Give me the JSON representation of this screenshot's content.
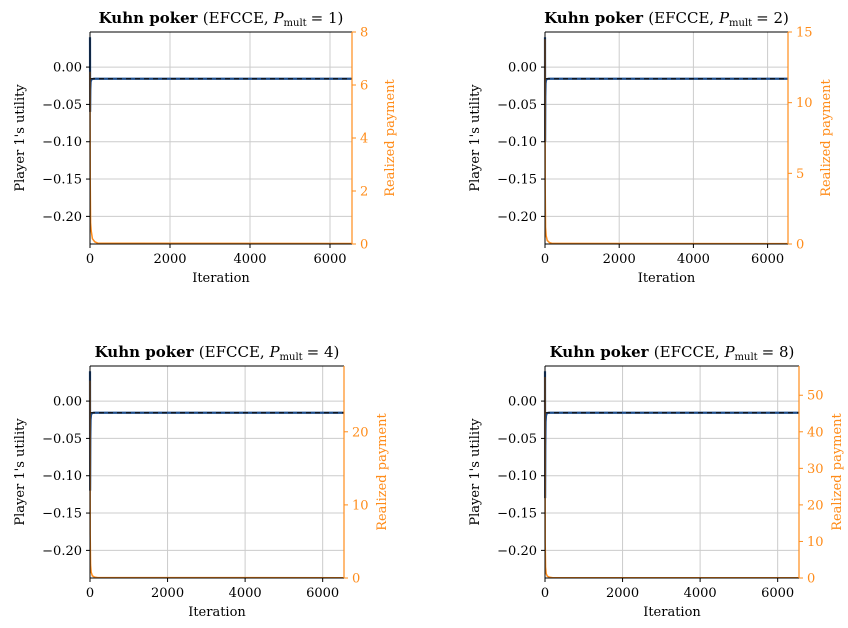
{
  "figure": {
    "title_prefix": "Kuhn poker",
    "title_bold_prefix": true,
    "colors": {
      "utility_line": "#1f4e8c",
      "utility_dashed": "#111111",
      "payment": "#ff8c1a",
      "grid": "#cccccc"
    }
  },
  "chart_data": [
    {
      "type": "line",
      "title": "Kuhn poker (EFCCE, P_mult = 1)",
      "title_suffix": "(EFCCE, ",
      "pmult_label": "P",
      "pmult_sub": "mult",
      "pmult_value": "= 1)",
      "xlabel": "Iteration",
      "ylabel": "Player 1's utility",
      "y2label": "Realized payment",
      "xlim": [
        0,
        6550
      ],
      "ylim": [
        -0.237,
        0.047
      ],
      "y2lim": [
        0,
        8
      ],
      "xticks": [
        0,
        2000,
        4000,
        6000
      ],
      "xtick_labels": [
        "0",
        "2000",
        "4000",
        "6000"
      ],
      "yticks": [
        0.0,
        -0.05,
        -0.1,
        -0.15,
        -0.2
      ],
      "ytick_labels": [
        "0.00",
        "−0.05",
        "−0.10",
        "−0.15",
        "−0.20"
      ],
      "y2ticks": [
        0,
        2,
        4,
        6,
        8
      ],
      "y2tick_labels": [
        "0",
        "2",
        "4",
        "6",
        "8"
      ],
      "grid": true,
      "series": [
        {
          "axis": "left",
          "style": "solid",
          "x": [
            0,
            3,
            8,
            15,
            25,
            40,
            60,
            100,
            6550
          ],
          "y": [
            0.04,
            -0.06,
            -0.03,
            -0.02,
            -0.018,
            -0.0165,
            -0.016,
            -0.0156,
            -0.0156
          ]
        },
        {
          "axis": "left",
          "style": "dashed",
          "x": [
            0,
            6550
          ],
          "y": [
            -0.0156,
            -0.0156
          ]
        },
        {
          "axis": "right",
          "style": "solid",
          "x": [
            0,
            5,
            15,
            30,
            60,
            120,
            200,
            6550
          ],
          "y": [
            6.5,
            2.5,
            0.8,
            0.5,
            0.2,
            0.08,
            0.03,
            0.02
          ]
        }
      ]
    },
    {
      "type": "line",
      "title": "Kuhn poker (EFCCE, P_mult = 2)",
      "title_suffix": "(EFCCE, ",
      "pmult_label": "P",
      "pmult_sub": "mult",
      "pmult_value": "= 2)",
      "xlabel": "Iteration",
      "ylabel": "Player 1's utility",
      "y2label": "Realized payment",
      "xlim": [
        0,
        6550
      ],
      "ylim": [
        -0.237,
        0.047
      ],
      "y2lim": [
        0,
        15
      ],
      "xticks": [
        0,
        2000,
        4000,
        6000
      ],
      "xtick_labels": [
        "0",
        "2000",
        "4000",
        "6000"
      ],
      "yticks": [
        0.0,
        -0.05,
        -0.1,
        -0.15,
        -0.2
      ],
      "ytick_labels": [
        "0.00",
        "−0.05",
        "−0.10",
        "−0.15",
        "−0.20"
      ],
      "y2ticks": [
        0,
        5,
        10,
        15
      ],
      "y2tick_labels": [
        "0",
        "5",
        "10",
        "15"
      ],
      "grid": true,
      "series": [
        {
          "axis": "left",
          "style": "solid",
          "x": [
            0,
            3,
            8,
            15,
            25,
            40,
            60,
            100,
            6550
          ],
          "y": [
            0.04,
            -0.1,
            -0.04,
            -0.022,
            -0.018,
            -0.0165,
            -0.016,
            -0.0156,
            -0.0156
          ]
        },
        {
          "axis": "left",
          "style": "dashed",
          "x": [
            0,
            6550
          ],
          "y": [
            -0.0156,
            -0.0156
          ]
        },
        {
          "axis": "right",
          "style": "solid",
          "x": [
            0,
            5,
            15,
            30,
            60,
            120,
            200,
            6550
          ],
          "y": [
            14.5,
            4.0,
            1.2,
            0.6,
            0.25,
            0.1,
            0.04,
            0.03
          ]
        }
      ]
    },
    {
      "type": "line",
      "title": "Kuhn poker (EFCCE, P_mult = 4)",
      "title_suffix": "(EFCCE, ",
      "pmult_label": "P",
      "pmult_sub": "mult",
      "pmult_value": "= 4)",
      "xlabel": "Iteration",
      "ylabel": "Player 1's utility",
      "y2label": "Realized payment",
      "xlim": [
        0,
        6550
      ],
      "ylim": [
        -0.237,
        0.047
      ],
      "y2lim": [
        0,
        29
      ],
      "xticks": [
        0,
        2000,
        4000,
        6000
      ],
      "xtick_labels": [
        "0",
        "2000",
        "4000",
        "6000"
      ],
      "yticks": [
        0.0,
        -0.05,
        -0.1,
        -0.15,
        -0.2
      ],
      "ytick_labels": [
        "0.00",
        "−0.05",
        "−0.10",
        "−0.15",
        "−0.20"
      ],
      "y2ticks": [
        0,
        10,
        20
      ],
      "y2tick_labels": [
        "0",
        "10",
        "20"
      ],
      "grid": true,
      "series": [
        {
          "axis": "left",
          "style": "solid",
          "x": [
            0,
            3,
            8,
            15,
            25,
            40,
            60,
            100,
            6550
          ],
          "y": [
            0.04,
            -0.12,
            -0.05,
            -0.025,
            -0.019,
            -0.0165,
            -0.016,
            -0.0156,
            -0.0156
          ]
        },
        {
          "axis": "left",
          "style": "dashed",
          "x": [
            0,
            6550
          ],
          "y": [
            -0.0156,
            -0.0156
          ]
        },
        {
          "axis": "right",
          "style": "solid",
          "x": [
            0,
            5,
            15,
            30,
            60,
            120,
            200,
            6550
          ],
          "y": [
            27,
            6.0,
            1.8,
            0.8,
            0.3,
            0.12,
            0.05,
            0.04
          ]
        }
      ]
    },
    {
      "type": "line",
      "title": "Kuhn poker (EFCCE, P_mult = 8)",
      "title_suffix": "(EFCCE, ",
      "pmult_label": "P",
      "pmult_sub": "mult",
      "pmult_value": "= 8)",
      "xlabel": "Iteration",
      "ylabel": "Player 1's utility",
      "y2label": "Realized payment",
      "xlim": [
        0,
        6550
      ],
      "ylim": [
        -0.237,
        0.047
      ],
      "y2lim": [
        0,
        58
      ],
      "xticks": [
        0,
        2000,
        4000,
        6000
      ],
      "xtick_labels": [
        "0",
        "2000",
        "4000",
        "6000"
      ],
      "yticks": [
        0.0,
        -0.05,
        -0.1,
        -0.15,
        -0.2
      ],
      "ytick_labels": [
        "0.00",
        "−0.05",
        "−0.10",
        "−0.15",
        "−0.20"
      ],
      "y2ticks": [
        0,
        10,
        20,
        30,
        40,
        50
      ],
      "y2tick_labels": [
        "0",
        "10",
        "20",
        "30",
        "40",
        "50"
      ],
      "grid": true,
      "series": [
        {
          "axis": "left",
          "style": "solid",
          "x": [
            0,
            3,
            8,
            15,
            25,
            40,
            60,
            100,
            6550
          ],
          "y": [
            0.04,
            -0.13,
            -0.06,
            -0.028,
            -0.02,
            -0.017,
            -0.016,
            -0.0156,
            -0.0156
          ]
        },
        {
          "axis": "left",
          "style": "dashed",
          "x": [
            0,
            6550
          ],
          "y": [
            -0.0156,
            -0.0156
          ]
        },
        {
          "axis": "right",
          "style": "solid",
          "x": [
            0,
            5,
            15,
            30,
            60,
            120,
            200,
            6550
          ],
          "y": [
            55,
            10.0,
            3.0,
            1.2,
            0.5,
            0.2,
            0.08,
            0.06
          ]
        }
      ]
    }
  ]
}
